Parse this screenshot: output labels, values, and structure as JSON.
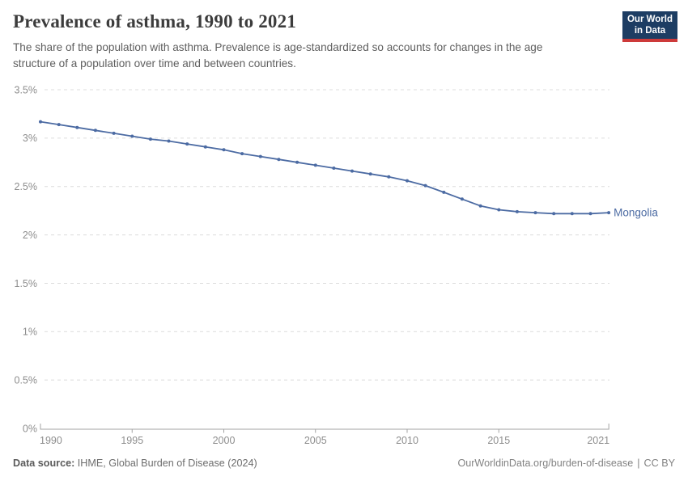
{
  "header": {
    "title": "Prevalence of asthma, 1990 to 2021",
    "subtitle": "The share of the population with asthma. Prevalence is age-standardized so accounts for changes in the age structure of a population over time and between countries."
  },
  "logo": {
    "line1": "Our World",
    "line2": "in Data"
  },
  "chart_data": {
    "type": "line",
    "title": "Prevalence of asthma, 1990 to 2021",
    "xlabel": "",
    "ylabel": "",
    "unit": "%",
    "xlim": [
      1990,
      2021
    ],
    "ylim": [
      0,
      3.5
    ],
    "grid": true,
    "legend_position": "end-of-line",
    "series": [
      {
        "name": "Mongolia",
        "color": "#4c6ba3",
        "x": [
          1990,
          1991,
          1992,
          1993,
          1994,
          1995,
          1996,
          1997,
          1998,
          1999,
          2000,
          2001,
          2002,
          2003,
          2004,
          2005,
          2006,
          2007,
          2008,
          2009,
          2010,
          2011,
          2012,
          2013,
          2014,
          2015,
          2016,
          2017,
          2018,
          2019,
          2020,
          2021
        ],
        "values": [
          3.17,
          3.14,
          3.11,
          3.08,
          3.05,
          3.02,
          2.99,
          2.97,
          2.94,
          2.91,
          2.88,
          2.84,
          2.81,
          2.78,
          2.75,
          2.72,
          2.69,
          2.66,
          2.63,
          2.6,
          2.56,
          2.51,
          2.44,
          2.37,
          2.3,
          2.26,
          2.24,
          2.23,
          2.22,
          2.22,
          2.22,
          2.23
        ]
      }
    ],
    "yticks": [
      {
        "v": 0,
        "label": "0%"
      },
      {
        "v": 0.5,
        "label": "0.5%"
      },
      {
        "v": 1,
        "label": "1%"
      },
      {
        "v": 1.5,
        "label": "1.5%"
      },
      {
        "v": 2,
        "label": "2%"
      },
      {
        "v": 2.5,
        "label": "2.5%"
      },
      {
        "v": 3,
        "label": "3%"
      },
      {
        "v": 3.5,
        "label": "3.5%"
      }
    ],
    "xticks": [
      {
        "v": 1990,
        "label": "1990"
      },
      {
        "v": 1995,
        "label": "1995"
      },
      {
        "v": 2000,
        "label": "2000"
      },
      {
        "v": 2005,
        "label": "2005"
      },
      {
        "v": 2010,
        "label": "2010"
      },
      {
        "v": 2015,
        "label": "2015"
      },
      {
        "v": 2021,
        "label": "2021"
      }
    ],
    "colors": {
      "line": "#4c6ba3",
      "gridline": "#dcdcdc",
      "axis": "#a3a3a3",
      "tick_label": "#8e8e8e"
    }
  },
  "footer": {
    "source_label": "Data source:",
    "source_value": "IHME, Global Burden of Disease (2024)",
    "url": "OurWorldinData.org/burden-of-disease",
    "separator": "|",
    "license": "CC BY"
  }
}
